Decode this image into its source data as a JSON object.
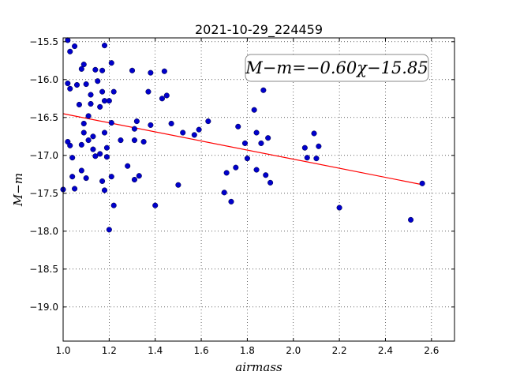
{
  "chart_data": {
    "type": "scatter",
    "title": "2021-10-29_224459",
    "xlabel": "airmass",
    "ylabel": "M−m",
    "xlim": [
      1.0,
      2.7
    ],
    "ylim": [
      -19.45,
      -15.45
    ],
    "y_inverted": true,
    "grid": true,
    "x_ticks": [
      "1.0",
      "1.2",
      "1.4",
      "1.6",
      "1.8",
      "2.0",
      "2.2",
      "2.4",
      "2.6"
    ],
    "x_tick_values": [
      1.0,
      1.2,
      1.4,
      1.6,
      1.8,
      2.0,
      2.2,
      2.4,
      2.6
    ],
    "y_ticks": [
      "−15.5",
      "−16.0",
      "−16.5",
      "−17.0",
      "−17.5",
      "−18.0",
      "−18.5",
      "−19.0"
    ],
    "y_tick_values": [
      -15.5,
      -16.0,
      -16.5,
      -17.0,
      -17.5,
      -18.0,
      -18.5,
      -19.0
    ],
    "annotation": "M−m=−0.60χ−15.85",
    "fit": {
      "slope": -0.6,
      "intercept": -15.85,
      "x_range": [
        1.0,
        2.56
      ],
      "color": "#ff0000"
    },
    "point_color": "#0000cc",
    "points": [
      [
        1.0,
        -17.45
      ],
      [
        1.02,
        -15.48
      ],
      [
        1.02,
        -16.05
      ],
      [
        1.02,
        -16.82
      ],
      [
        1.03,
        -15.63
      ],
      [
        1.03,
        -16.12
      ],
      [
        1.03,
        -16.87
      ],
      [
        1.04,
        -17.28
      ],
      [
        1.04,
        -17.03
      ],
      [
        1.05,
        -15.56
      ],
      [
        1.05,
        -17.44
      ],
      [
        1.06,
        -16.07
      ],
      [
        1.07,
        -16.33
      ],
      [
        1.08,
        -15.86
      ],
      [
        1.08,
        -16.86
      ],
      [
        1.08,
        -17.2
      ],
      [
        1.09,
        -15.8
      ],
      [
        1.09,
        -16.58
      ],
      [
        1.09,
        -16.7
      ],
      [
        1.1,
        -16.06
      ],
      [
        1.1,
        -17.3
      ],
      [
        1.11,
        -16.8
      ],
      [
        1.11,
        -16.48
      ],
      [
        1.12,
        -16.32
      ],
      [
        1.12,
        -16.2
      ],
      [
        1.13,
        -16.75
      ],
      [
        1.13,
        -16.92
      ],
      [
        1.14,
        -15.87
      ],
      [
        1.14,
        -17.01
      ],
      [
        1.15,
        -16.02
      ],
      [
        1.16,
        -16.36
      ],
      [
        1.16,
        -16.98
      ],
      [
        1.17,
        -15.88
      ],
      [
        1.17,
        -16.16
      ],
      [
        1.17,
        -17.34
      ],
      [
        1.18,
        -15.55
      ],
      [
        1.18,
        -16.28
      ],
      [
        1.18,
        -16.7
      ],
      [
        1.18,
        -17.46
      ],
      [
        1.19,
        -16.9
      ],
      [
        1.19,
        -17.02
      ],
      [
        1.2,
        -16.28
      ],
      [
        1.2,
        -17.98
      ],
      [
        1.21,
        -16.57
      ],
      [
        1.21,
        -17.28
      ],
      [
        1.21,
        -15.78
      ],
      [
        1.22,
        -16.16
      ],
      [
        1.22,
        -17.66
      ],
      [
        1.25,
        -16.8
      ],
      [
        1.28,
        -17.14
      ],
      [
        1.3,
        -15.88
      ],
      [
        1.31,
        -16.65
      ],
      [
        1.31,
        -16.8
      ],
      [
        1.31,
        -17.32
      ],
      [
        1.32,
        -16.55
      ],
      [
        1.33,
        -17.27
      ],
      [
        1.35,
        -16.82
      ],
      [
        1.37,
        -16.16
      ],
      [
        1.38,
        -15.91
      ],
      [
        1.38,
        -16.6
      ],
      [
        1.4,
        -17.66
      ],
      [
        1.43,
        -16.25
      ],
      [
        1.44,
        -15.89
      ],
      [
        1.45,
        -16.21
      ],
      [
        1.47,
        -16.58
      ],
      [
        1.5,
        -17.39
      ],
      [
        1.52,
        -16.7
      ],
      [
        1.57,
        -16.73
      ],
      [
        1.59,
        -16.66
      ],
      [
        1.63,
        -16.55
      ],
      [
        1.7,
        -17.49
      ],
      [
        1.71,
        -17.23
      ],
      [
        1.73,
        -17.61
      ],
      [
        1.75,
        -17.16
      ],
      [
        1.76,
        -16.62
      ],
      [
        1.79,
        -16.84
      ],
      [
        1.8,
        -17.04
      ],
      [
        1.83,
        -16.4
      ],
      [
        1.84,
        -16.7
      ],
      [
        1.84,
        -17.19
      ],
      [
        1.86,
        -16.84
      ],
      [
        1.87,
        -16.14
      ],
      [
        1.88,
        -17.26
      ],
      [
        1.89,
        -16.77
      ],
      [
        1.9,
        -17.36
      ],
      [
        2.05,
        -16.9
      ],
      [
        2.06,
        -17.03
      ],
      [
        2.09,
        -16.71
      ],
      [
        2.1,
        -17.04
      ],
      [
        2.11,
        -16.88
      ],
      [
        2.2,
        -17.69
      ],
      [
        2.51,
        -17.85
      ],
      [
        2.56,
        -17.37
      ]
    ]
  }
}
